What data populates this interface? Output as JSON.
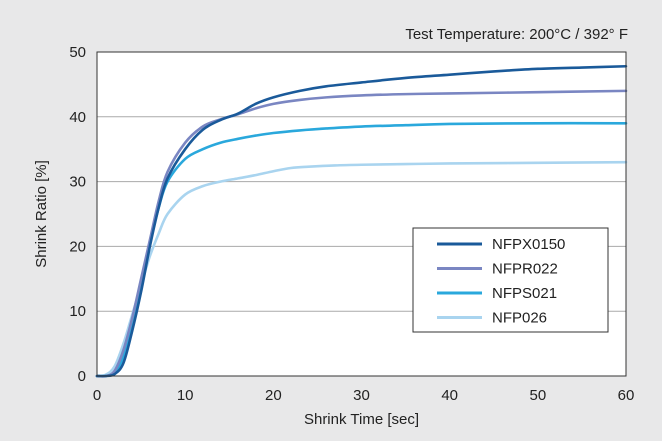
{
  "chart_data": {
    "type": "line",
    "annotation": "Test Temperature: 200°C / 392° F",
    "xlabel": "Shrink Time [sec]",
    "ylabel": "Shrink Ratio [%]",
    "xlim": [
      0,
      60
    ],
    "ylim": [
      0,
      50
    ],
    "x_ticks": [
      0,
      10,
      20,
      30,
      40,
      50,
      60
    ],
    "y_ticks": [
      0,
      10,
      20,
      30,
      40,
      50
    ],
    "grid": "horizontal",
    "legend_position": "bottom-right",
    "series": [
      {
        "name": "NFPX0150",
        "color": "#1a5a9a",
        "points": [
          [
            0,
            0
          ],
          [
            1,
            0
          ],
          [
            2,
            0.3
          ],
          [
            3,
            2
          ],
          [
            4,
            7
          ],
          [
            5,
            13
          ],
          [
            6,
            20
          ],
          [
            7,
            26
          ],
          [
            8,
            30.5
          ],
          [
            10,
            35
          ],
          [
            12,
            38
          ],
          [
            14,
            39.5
          ],
          [
            16,
            40.5
          ],
          [
            18,
            42
          ],
          [
            20,
            43
          ],
          [
            23,
            44
          ],
          [
            26,
            44.7
          ],
          [
            30,
            45.3
          ],
          [
            35,
            46
          ],
          [
            40,
            46.5
          ],
          [
            45,
            47
          ],
          [
            50,
            47.4
          ],
          [
            55,
            47.6
          ],
          [
            60,
            47.8
          ]
        ]
      },
      {
        "name": "NFPR022",
        "color": "#7a86c2",
        "points": [
          [
            0,
            0
          ],
          [
            1,
            0
          ],
          [
            2,
            0.8
          ],
          [
            3,
            4
          ],
          [
            4,
            9
          ],
          [
            5,
            15
          ],
          [
            6,
            21
          ],
          [
            7,
            27
          ],
          [
            8,
            31.5
          ],
          [
            10,
            36
          ],
          [
            12,
            38.5
          ],
          [
            14,
            39.6
          ],
          [
            16,
            40.4
          ],
          [
            18,
            41.3
          ],
          [
            20,
            42
          ],
          [
            23,
            42.6
          ],
          [
            26,
            43
          ],
          [
            30,
            43.3
          ],
          [
            35,
            43.5
          ],
          [
            40,
            43.6
          ],
          [
            50,
            43.8
          ],
          [
            60,
            44
          ]
        ]
      },
      {
        "name": "NFPS021",
        "color": "#2aa8dc",
        "points": [
          [
            0,
            0
          ],
          [
            1,
            0
          ],
          [
            2,
            0.5
          ],
          [
            3,
            3
          ],
          [
            4,
            8
          ],
          [
            5,
            14
          ],
          [
            6,
            20.5
          ],
          [
            7,
            26
          ],
          [
            8,
            30
          ],
          [
            10,
            33.5
          ],
          [
            12,
            35
          ],
          [
            14,
            36
          ],
          [
            16,
            36.6
          ],
          [
            18,
            37.1
          ],
          [
            20,
            37.5
          ],
          [
            23,
            37.9
          ],
          [
            26,
            38.2
          ],
          [
            30,
            38.5
          ],
          [
            35,
            38.7
          ],
          [
            40,
            38.9
          ],
          [
            50,
            39
          ],
          [
            60,
            39
          ]
        ]
      },
      {
        "name": "NFP026",
        "color": "#a9d4ef",
        "points": [
          [
            0,
            0
          ],
          [
            1,
            0.2
          ],
          [
            2,
            1.5
          ],
          [
            3,
            5
          ],
          [
            4,
            9.5
          ],
          [
            5,
            14
          ],
          [
            6,
            18.5
          ],
          [
            7,
            22
          ],
          [
            8,
            25
          ],
          [
            10,
            28
          ],
          [
            12,
            29.3
          ],
          [
            14,
            30
          ],
          [
            16,
            30.5
          ],
          [
            18,
            31
          ],
          [
            20,
            31.6
          ],
          [
            22,
            32.1
          ],
          [
            24,
            32.3
          ],
          [
            27,
            32.5
          ],
          [
            30,
            32.6
          ],
          [
            35,
            32.7
          ],
          [
            40,
            32.8
          ],
          [
            50,
            32.9
          ],
          [
            60,
            33
          ]
        ]
      }
    ]
  }
}
